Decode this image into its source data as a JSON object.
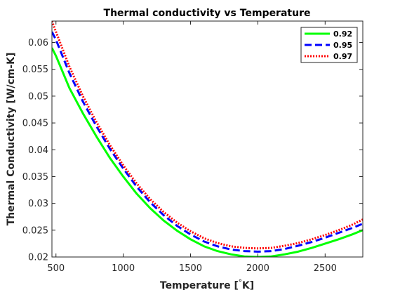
{
  "chart_data": {
    "type": "line",
    "title": "Thermal conductivity vs Temperature",
    "xlabel": "Temperature [",
    "xlabel_degree": "°",
    "xlabel_unit": "K]",
    "ylabel": "Thermal Conductivity [W/cm-K]",
    "xlim": [
      470,
      2780
    ],
    "ylim": [
      0.02,
      0.064
    ],
    "xticks": [
      500,
      1000,
      1500,
      2000,
      2500
    ],
    "xtick_labels": [
      "500",
      "1000",
      "1500",
      "2000",
      "2500"
    ],
    "yticks": [
      0.02,
      0.025,
      0.03,
      0.035,
      0.04,
      0.045,
      0.05,
      0.055,
      0.06
    ],
    "ytick_labels": [
      "0.02",
      "0.025",
      "0.03",
      "0.035",
      "0.04",
      "0.045",
      "0.05",
      "0.055",
      "0.06"
    ],
    "grid": false,
    "legend_position": "top-right",
    "x": [
      470,
      500,
      600,
      700,
      800,
      900,
      1000,
      1100,
      1200,
      1300,
      1400,
      1500,
      1600,
      1700,
      1800,
      1900,
      2000,
      2100,
      2200,
      2300,
      2400,
      2500,
      2600,
      2700,
      2780
    ],
    "series": [
      {
        "name": "0.92",
        "color": "#00ff00",
        "dash": "solid",
        "values": [
          0.059,
          0.0575,
          0.0515,
          0.0468,
          0.0425,
          0.0385,
          0.035,
          0.0318,
          0.0291,
          0.0268,
          0.0249,
          0.0233,
          0.022,
          0.0211,
          0.0205,
          0.0201,
          0.02,
          0.0201,
          0.0205,
          0.021,
          0.0217,
          0.0225,
          0.0233,
          0.0242,
          0.025
        ]
      },
      {
        "name": "0.95",
        "color": "#0000ff",
        "dash": "dashed",
        "values": [
          0.062,
          0.0605,
          0.0543,
          0.049,
          0.0444,
          0.0402,
          0.0365,
          0.0331,
          0.0302,
          0.0278,
          0.0258,
          0.0242,
          0.0229,
          0.022,
          0.0214,
          0.0211,
          0.021,
          0.0211,
          0.0215,
          0.0221,
          0.0228,
          0.0236,
          0.0245,
          0.0254,
          0.0262
        ]
      },
      {
        "name": "0.97",
        "color": "#ff0000",
        "dash": "dotted",
        "values": [
          0.064,
          0.062,
          0.0555,
          0.05,
          0.0452,
          0.0409,
          0.0371,
          0.0337,
          0.0308,
          0.0284,
          0.0264,
          0.0248,
          0.0235,
          0.0226,
          0.022,
          0.0217,
          0.0216,
          0.0217,
          0.0221,
          0.0226,
          0.0233,
          0.0241,
          0.025,
          0.026,
          0.027
        ]
      }
    ]
  }
}
